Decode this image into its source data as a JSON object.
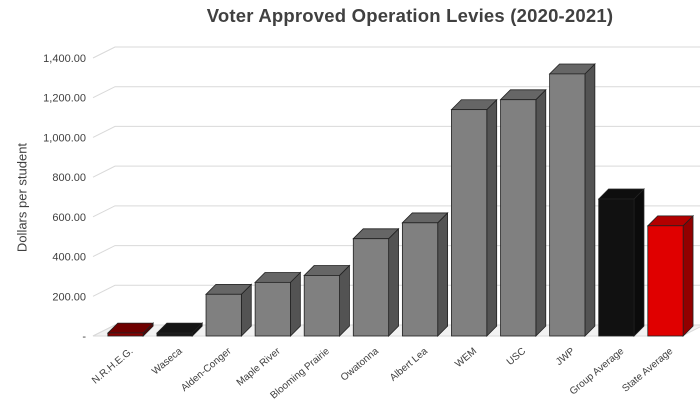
{
  "chart_data": {
    "type": "bar",
    "title": "Voter Approved Operation Levies (2020-2021)",
    "xlabel": "",
    "ylabel": "Dollars per student",
    "ylim": [
      0,
      1400
    ],
    "y_ticks": [
      "-",
      "200.00",
      "400.00",
      "600.00",
      "800.00",
      "1,000.00",
      "1,200.00",
      "1,400.00"
    ],
    "grid": true,
    "style": "3d-column",
    "categories": [
      "N.R.H.E.G.",
      "Waseca",
      "Alden-Conger",
      "Maple River",
      "Blooming Prairie",
      "Owatonna",
      "Albert Lea",
      "WEM",
      "USC",
      "JWP",
      "Group Average",
      "State Average"
    ],
    "values": [
      0,
      0,
      210,
      270,
      305,
      490,
      570,
      1140,
      1190,
      1320,
      690,
      555
    ],
    "bar_colors": [
      "#8b0000",
      "#1a1a1a",
      "#808080",
      "#808080",
      "#808080",
      "#808080",
      "#808080",
      "#808080",
      "#808080",
      "#808080",
      "#111111",
      "#e00000"
    ]
  }
}
